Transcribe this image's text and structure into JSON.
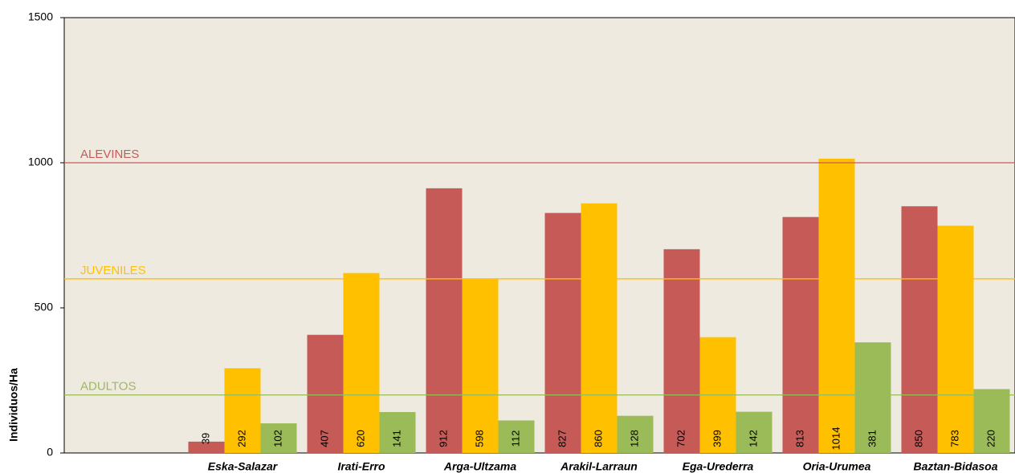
{
  "chart_data": {
    "type": "bar",
    "y_label": "Individuos/Ha",
    "categories": [
      null,
      "Eska-Salazar",
      "Irati-Erro",
      "Arga-Ultzama",
      "Arakil-Larraun",
      "Ega-Urederra",
      "Oria-Urumea",
      "Baztan-Bidasoa"
    ],
    "series": [
      {
        "color": "#c55a57",
        "values": [
          null,
          39,
          407,
          912,
          827,
          702,
          813,
          850
        ]
      },
      {
        "color": "#ffc000",
        "values": [
          null,
          292,
          620,
          598,
          860,
          399,
          1014,
          783
        ]
      },
      {
        "color": "#9bbb59",
        "values": [
          null,
          102,
          141,
          112,
          128,
          142,
          381,
          220
        ]
      }
    ],
    "reference_lines": [
      {
        "label": "ALEVINES",
        "value": 1000,
        "color": "#c55a57"
      },
      {
        "label": "JUVENILES",
        "value": 600,
        "color": "#ffc000"
      },
      {
        "label": "ADULTOS",
        "value": 200,
        "color": "#9bbb59"
      }
    ],
    "ylim": [
      0,
      1500
    ],
    "yticks": [
      0,
      500,
      1000,
      1500
    ]
  }
}
